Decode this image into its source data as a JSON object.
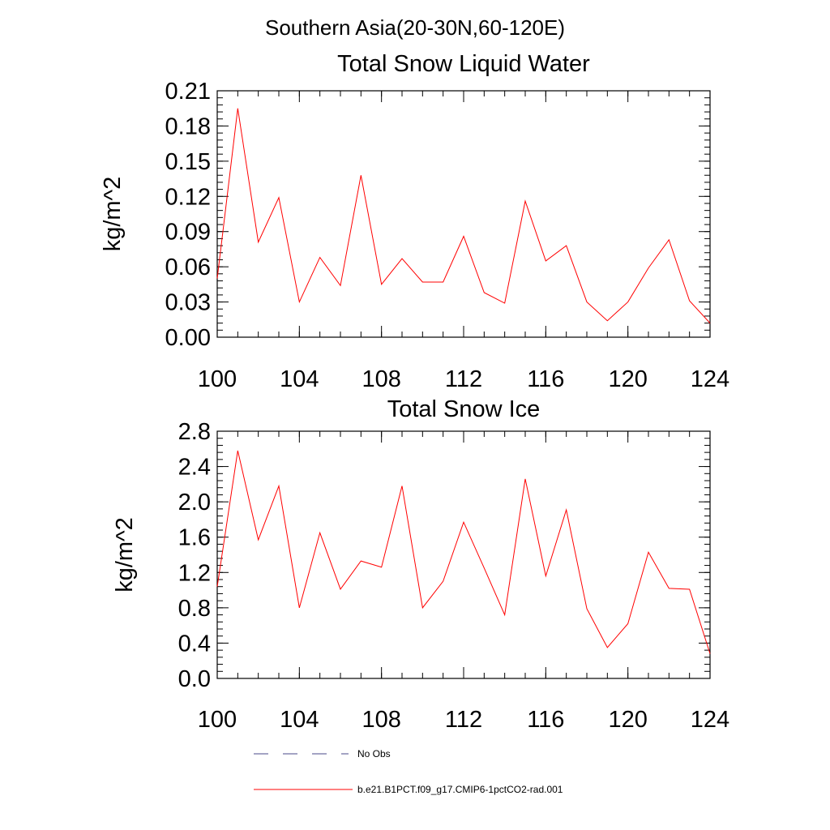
{
  "figure": {
    "title": "Southern Asia(20-30N,60-120E)"
  },
  "chart_data": [
    {
      "type": "line",
      "title": "Total Snow Liquid Water",
      "xlabel": "",
      "ylabel": "kg/m^2",
      "xlim": [
        100,
        124
      ],
      "ylim": [
        0,
        0.21
      ],
      "xticks": [
        100,
        104,
        108,
        112,
        116,
        120,
        124
      ],
      "xtick_labels": [
        "100",
        "104",
        "108",
        "112",
        "116",
        "120",
        "124"
      ],
      "xminor_step": 1,
      "yticks": [
        0,
        0.03,
        0.06,
        0.09,
        0.12,
        0.15,
        0.18,
        0.21
      ],
      "ytick_labels": [
        "0.00",
        "0.03",
        "0.06",
        "0.09",
        "0.12",
        "0.15",
        "0.18",
        "0.21"
      ],
      "yminor_step": 0.006,
      "grid": false,
      "x": [
        100,
        101,
        102,
        103,
        104,
        105,
        106,
        107,
        108,
        109,
        110,
        111,
        112,
        113,
        114,
        115,
        116,
        117,
        118,
        119,
        120,
        121,
        122,
        123,
        124
      ],
      "series": [
        {
          "name": "b.e21.B1PCT.f09_g17.CMIP6-1pctCO2-rad.001",
          "color": "#ff0000",
          "values": [
            0.05,
            0.195,
            0.081,
            0.119,
            0.03,
            0.068,
            0.044,
            0.138,
            0.045,
            0.067,
            0.047,
            0.047,
            0.086,
            0.038,
            0.029,
            0.116,
            0.065,
            0.078,
            0.03,
            0.014,
            0.03,
            0.059,
            0.083,
            0.031,
            0.012
          ]
        }
      ]
    },
    {
      "type": "line",
      "title": "Total Snow Ice",
      "xlabel": "",
      "ylabel": "kg/m^2",
      "xlim": [
        100,
        124
      ],
      "ylim": [
        0,
        2.8
      ],
      "xticks": [
        100,
        104,
        108,
        112,
        116,
        120,
        124
      ],
      "xtick_labels": [
        "100",
        "104",
        "108",
        "112",
        "116",
        "120",
        "124"
      ],
      "xminor_step": 1,
      "yticks": [
        0,
        0.4,
        0.8,
        1.2,
        1.6,
        2.0,
        2.4,
        2.8
      ],
      "ytick_labels": [
        "0.0",
        "0.4",
        "0.8",
        "1.2",
        "1.6",
        "2.0",
        "2.4",
        "2.8"
      ],
      "yminor_step": 0.08,
      "grid": false,
      "x": [
        100,
        101,
        102,
        103,
        104,
        105,
        106,
        107,
        108,
        109,
        110,
        111,
        112,
        113,
        114,
        115,
        116,
        117,
        118,
        119,
        120,
        121,
        122,
        123,
        124
      ],
      "series": [
        {
          "name": "b.e21.B1PCT.f09_g17.CMIP6-1pctCO2-rad.001",
          "color": "#ff0000",
          "values": [
            1.04,
            2.58,
            1.57,
            2.18,
            0.8,
            1.65,
            1.01,
            1.33,
            1.26,
            2.18,
            0.8,
            1.1,
            1.77,
            1.25,
            0.72,
            2.26,
            1.16,
            1.91,
            0.79,
            0.35,
            0.62,
            1.43,
            1.02,
            1.01,
            0.28
          ]
        }
      ]
    }
  ],
  "legend": {
    "placement": "bottom-left",
    "entries": [
      {
        "label": "No Obs",
        "style": "dashed",
        "color": "#4a4a8a"
      },
      {
        "label": "b.e21.B1PCT.f09_g17.CMIP6-1pctCO2-rad.001",
        "style": "solid",
        "color": "#ff0000"
      }
    ]
  }
}
